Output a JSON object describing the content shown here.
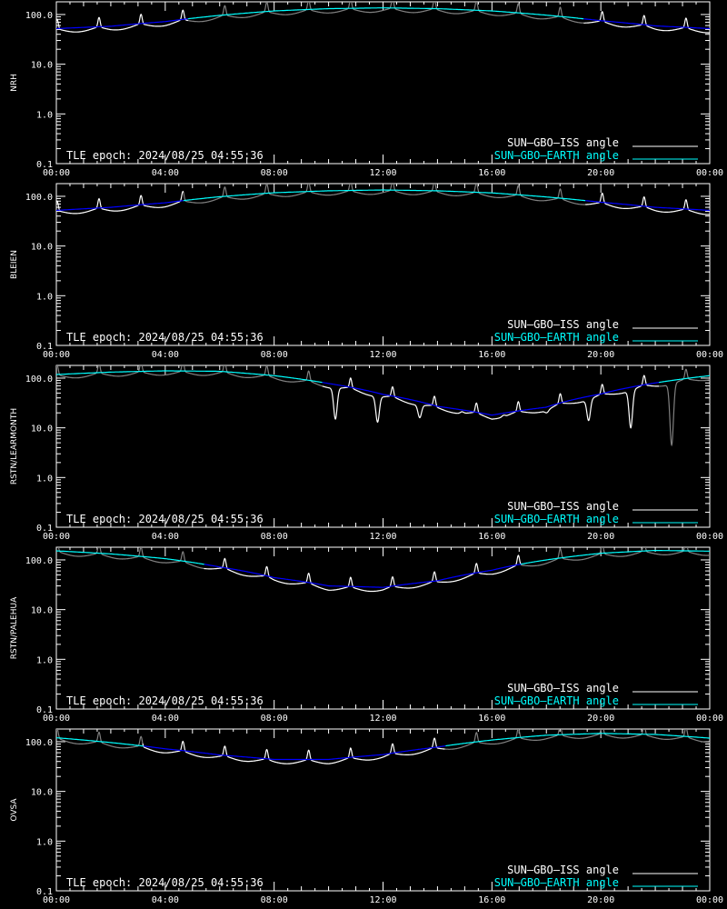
{
  "epoch_label": "TLE epoch: 2024/08/25 04:55:36",
  "legend": {
    "iss": "SUN—GBO—ISS angle",
    "earth": "SUN—GBO—EARTH angle"
  },
  "colors": {
    "background": "#000000",
    "axes": "#ffffff",
    "iss_visible": "#ffffff",
    "iss_occulted": "#808080",
    "earth_sun": "#00ffff",
    "earth_shadow": "#0000ff"
  },
  "chart_data": [
    {
      "type": "line",
      "ylabel": "NRH",
      "xlim": [
        "00:00",
        "24:00"
      ],
      "ylim": [
        0.1,
        180
      ],
      "yscale": "log",
      "x_ticks": [
        "00:00",
        "04:00",
        "08:00",
        "12:00",
        "16:00",
        "20:00",
        "00:00"
      ],
      "y_ticks": [
        "0.1",
        "1.0",
        "10.0",
        "100.0"
      ],
      "earth_sun_threshold": 82,
      "series": [
        {
          "name": "SUN—GBO—EARTH angle",
          "x_hours": [
            0,
            2,
            4,
            6,
            8,
            10,
            12,
            14,
            16,
            18,
            20,
            22,
            24
          ],
          "values": [
            52,
            58,
            72,
            96,
            118,
            131,
            136,
            131,
            118,
            97,
            75,
            59,
            52
          ]
        },
        {
          "name": "SUN—GBO—ISS angle",
          "style": "orbital",
          "period_hours": 1.54,
          "dip_fraction": 0.82,
          "peak_factor": 1.55
        }
      ]
    },
    {
      "type": "line",
      "ylabel": "BLEIEN",
      "xlim": [
        "00:00",
        "24:00"
      ],
      "ylim": [
        0.1,
        180
      ],
      "yscale": "log",
      "x_ticks": [
        "00:00",
        "04:00",
        "08:00",
        "12:00",
        "16:00",
        "20:00",
        "00:00"
      ],
      "y_ticks": [
        "0.1",
        "1.0",
        "10.0",
        "100.0"
      ],
      "earth_sun_threshold": 82,
      "series": [
        {
          "name": "SUN—GBO—EARTH angle",
          "x_hours": [
            0,
            2,
            4,
            6,
            8,
            10,
            12,
            14,
            16,
            18,
            20,
            22,
            24
          ],
          "values": [
            52,
            60,
            74,
            98,
            118,
            129,
            134,
            129,
            117,
            97,
            76,
            60,
            52
          ]
        },
        {
          "name": "SUN—GBO—ISS angle",
          "style": "orbital",
          "period_hours": 1.54,
          "dip_fraction": 0.82,
          "peak_factor": 1.55
        }
      ]
    },
    {
      "type": "line",
      "ylabel": "RSTN/LEARMONTH",
      "xlim": [
        "00:00",
        "24:00"
      ],
      "ylim": [
        0.1,
        180
      ],
      "yscale": "log",
      "x_ticks": [
        "00:00",
        "04:00",
        "08:00",
        "12:00",
        "16:00",
        "20:00",
        "00:00"
      ],
      "y_ticks": [
        "0.1",
        "1.0",
        "10.0",
        "100.0"
      ],
      "earth_sun_threshold": 82,
      "series": [
        {
          "name": "SUN—GBO—EARTH angle",
          "x_hours": [
            0,
            2,
            4,
            6,
            8,
            10,
            12,
            14,
            16,
            18,
            20,
            22,
            24
          ],
          "values": [
            118,
            132,
            140,
            137,
            112,
            78,
            47,
            27,
            18,
            26,
            48,
            80,
            112
          ]
        },
        {
          "name": "SUN—GBO—ISS angle",
          "style": "orbital",
          "period_hours": 1.54,
          "dip_fraction": 0.82,
          "peak_factor": 1.55,
          "deep_dips": [
            {
              "x": 10.25,
              "value": 15
            },
            {
              "x": 11.8,
              "value": 13
            },
            {
              "x": 13.35,
              "value": 16
            },
            {
              "x": 14.9,
              "value": 21
            },
            {
              "x": 16.45,
              "value": 18
            },
            {
              "x": 18.0,
              "value": 20
            },
            {
              "x": 19.55,
              "value": 14
            },
            {
              "x": 21.1,
              "value": 10
            },
            {
              "x": 22.6,
              "value": 4.5
            }
          ]
        }
      ]
    },
    {
      "type": "line",
      "ylabel": "RSTN/PALEHUA",
      "xlim": [
        "00:00",
        "24:00"
      ],
      "ylim": [
        0.1,
        180
      ],
      "yscale": "log",
      "x_ticks": [
        "00:00",
        "04:00",
        "08:00",
        "12:00",
        "16:00",
        "20:00",
        "00:00"
      ],
      "y_ticks": [
        "0.1",
        "1.0",
        "10.0",
        "100.0"
      ],
      "earth_sun_threshold": 82,
      "series": [
        {
          "name": "SUN—GBO—EARTH angle",
          "x_hours": [
            0,
            2,
            4,
            6,
            8,
            10,
            12,
            14,
            16,
            18,
            20,
            22,
            24
          ],
          "values": [
            152,
            132,
            106,
            72,
            44,
            30,
            28,
            38,
            62,
            100,
            136,
            155,
            150
          ]
        },
        {
          "name": "SUN—GBO—ISS angle",
          "style": "orbital",
          "period_hours": 1.54,
          "dip_fraction": 0.82,
          "peak_factor": 1.55
        }
      ]
    },
    {
      "type": "line",
      "ylabel": "OVSA",
      "xlim": [
        "00:00",
        "24:00"
      ],
      "ylim": [
        0.1,
        180
      ],
      "yscale": "log",
      "x_ticks": [
        "00:00",
        "04:00",
        "08:00",
        "12:00",
        "16:00",
        "20:00",
        "00:00"
      ],
      "y_ticks": [
        "0.1",
        "1.0",
        "10.0",
        "100.0"
      ],
      "earth_sun_threshold": 82,
      "series": [
        {
          "name": "SUN—GBO—EARTH angle",
          "x_hours": [
            0,
            2,
            4,
            6,
            8,
            10,
            12,
            14,
            16,
            18,
            20,
            22,
            24
          ],
          "values": [
            120,
            96,
            72,
            54,
            44,
            44,
            55,
            78,
            108,
            135,
            147,
            140,
            118
          ]
        },
        {
          "name": "SUN—GBO—ISS angle",
          "style": "orbital",
          "period_hours": 1.54,
          "dip_fraction": 0.82,
          "peak_factor": 1.55
        }
      ]
    }
  ]
}
